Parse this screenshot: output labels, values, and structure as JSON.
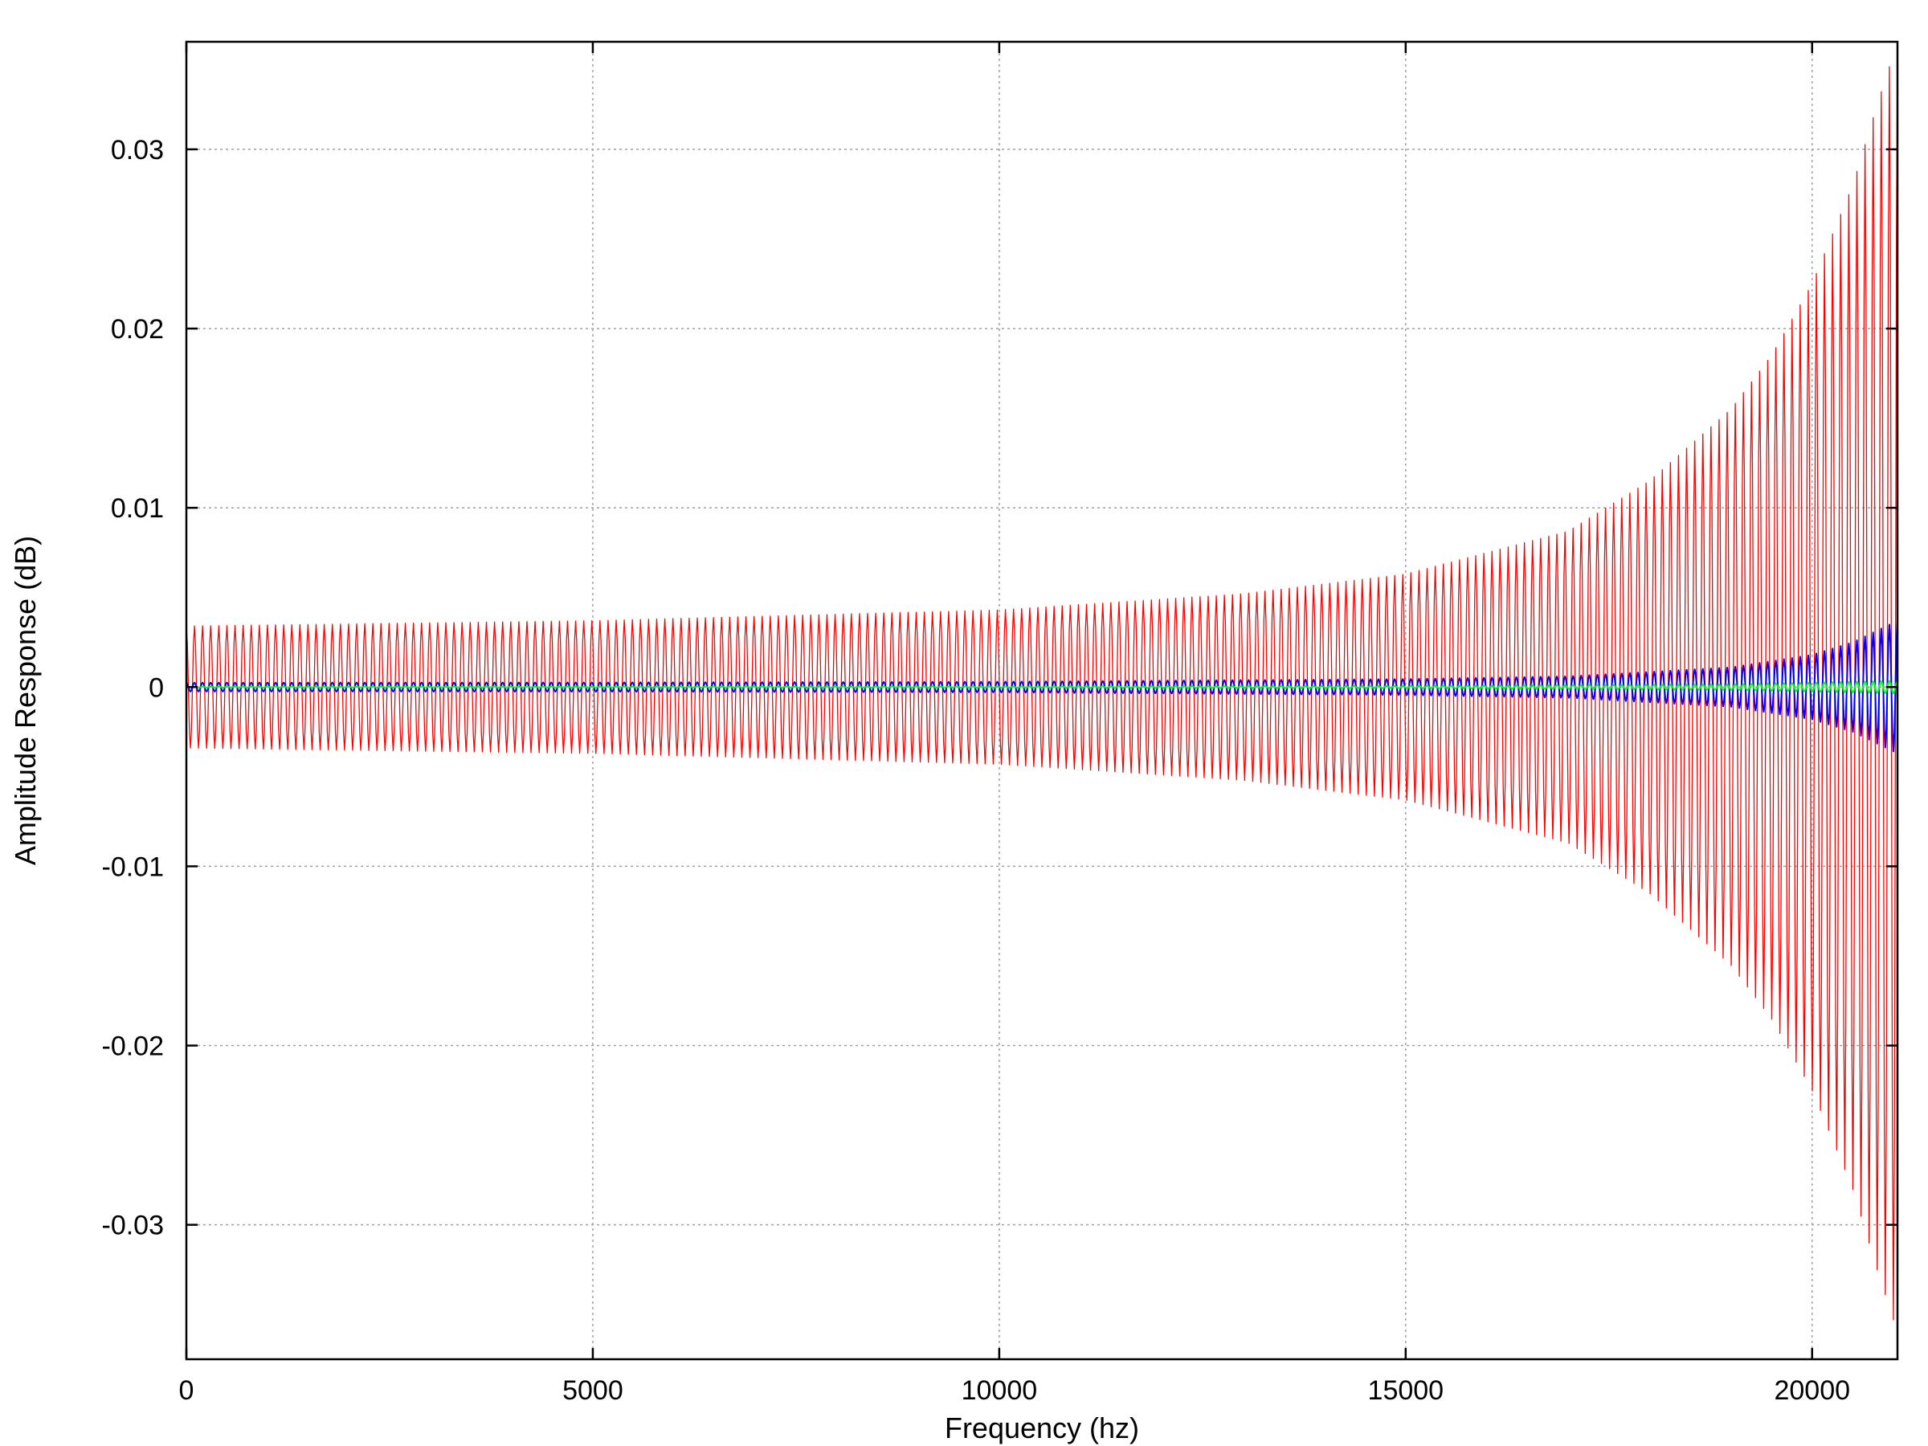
{
  "chart_data": {
    "type": "line",
    "title": "",
    "xlabel": "Frequency (hz)",
    "ylabel": "Amplitude Response (dB)",
    "xlim": [
      0,
      21050
    ],
    "ylim": [
      -0.0375,
      0.036
    ],
    "x_ticks": [
      0,
      5000,
      10000,
      15000,
      20000
    ],
    "x_tick_labels": [
      "0",
      "5000",
      "10000",
      "15000",
      "20000"
    ],
    "y_ticks": [
      0.03,
      0.02,
      0.01,
      0,
      -0.01,
      -0.02,
      -0.03
    ],
    "y_tick_labels": [
      "0.03",
      "0.02",
      "0.01",
      "0",
      "-0.01",
      "-0.02",
      "-0.03"
    ],
    "grid": true,
    "legend": "none",
    "series": [
      {
        "color": "#ff0000",
        "style": "ripple",
        "oscillation_count": 211,
        "envelope_x": [
          0,
          5000,
          10000,
          13000,
          15000,
          17000,
          18000,
          19000,
          19500,
          20000,
          20500,
          20800,
          21050
        ],
        "envelope_amplitude": [
          0.0034,
          0.0037,
          0.0043,
          0.0052,
          0.0063,
          0.0087,
          0.0115,
          0.0155,
          0.0185,
          0.0225,
          0.028,
          0.0325,
          0.036
        ]
      },
      {
        "color": "#0000ff",
        "style": "ripple",
        "oscillation_count": 211,
        "envelope_x": [
          0,
          5000,
          10000,
          15000,
          17000,
          19000,
          20000,
          20500,
          21050
        ],
        "envelope_amplitude": [
          0.00025,
          0.00026,
          0.0003,
          0.00045,
          0.0006,
          0.0011,
          0.0018,
          0.0025,
          0.0037
        ]
      },
      {
        "color": "#00ff00",
        "style": "ripple",
        "oscillation_count": 211,
        "envelope_x": [
          0,
          10000,
          15000,
          19000,
          21050
        ],
        "envelope_amplitude": [
          2e-05,
          3e-05,
          6e-05,
          0.00015,
          0.00035
        ]
      }
    ]
  }
}
